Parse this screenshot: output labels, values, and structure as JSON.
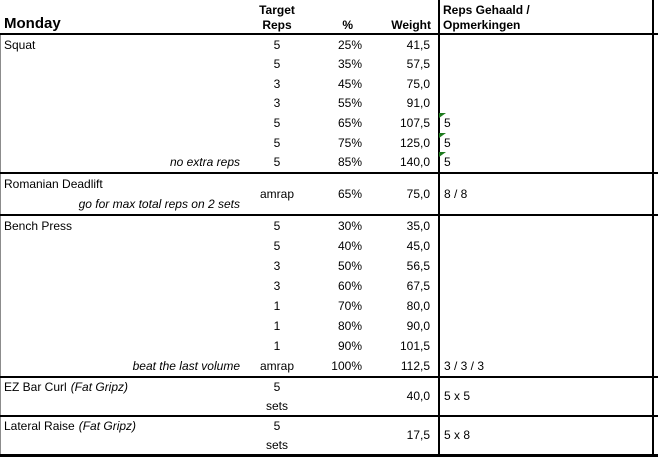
{
  "table": {
    "header": {
      "title": "Monday",
      "target_reps": [
        "Target",
        "Reps"
      ],
      "percent": "%",
      "weight": "Weight",
      "result": [
        "Reps Gehaald /",
        "Opmerkingen"
      ]
    },
    "sections": [
      {
        "exercise": "Squat",
        "note": "no extra reps",
        "rows": [
          {
            "reps": "5",
            "pct": "25%",
            "weight": "41,5",
            "result": ""
          },
          {
            "reps": "5",
            "pct": "35%",
            "weight": "57,5",
            "result": ""
          },
          {
            "reps": "3",
            "pct": "45%",
            "weight": "75,0",
            "result": ""
          },
          {
            "reps": "3",
            "pct": "55%",
            "weight": "91,0",
            "result": ""
          },
          {
            "reps": "5",
            "pct": "65%",
            "weight": "107,5",
            "result": "5",
            "has_note_indicator": true
          },
          {
            "reps": "5",
            "pct": "75%",
            "weight": "125,0",
            "result": "5",
            "has_note_indicator": true
          },
          {
            "reps": "5",
            "pct": "85%",
            "weight": "140,0",
            "result": "5",
            "has_note_indicator": true
          }
        ]
      },
      {
        "exercise": "Romanian Deadlift",
        "note": "go for max total reps on 2 sets",
        "reps": "amrap",
        "pct": "65%",
        "weight": "75,0",
        "result": "8 / 8"
      },
      {
        "exercise": "Bench Press",
        "note": "beat the last volume",
        "rows": [
          {
            "reps": "5",
            "pct": "30%",
            "weight": "35,0",
            "result": ""
          },
          {
            "reps": "5",
            "pct": "40%",
            "weight": "45,0",
            "result": ""
          },
          {
            "reps": "3",
            "pct": "50%",
            "weight": "56,5",
            "result": ""
          },
          {
            "reps": "3",
            "pct": "60%",
            "weight": "67,5",
            "result": ""
          },
          {
            "reps": "1",
            "pct": "70%",
            "weight": "80,0",
            "result": ""
          },
          {
            "reps": "1",
            "pct": "80%",
            "weight": "90,0",
            "result": ""
          },
          {
            "reps": "1",
            "pct": "90%",
            "weight": "101,5",
            "result": ""
          },
          {
            "reps": "amrap",
            "pct": "100%",
            "weight": "112,5",
            "result": "3 / 3 / 3"
          }
        ]
      },
      {
        "exercise": "EZ Bar Curl",
        "exercise_suffix": "(Fat Gripz)",
        "reps": "5",
        "reps_unit": "sets",
        "weight": "40,0",
        "result": "5 x 5"
      },
      {
        "exercise": "Lateral Raise",
        "exercise_suffix": "(Fat Gripz)",
        "reps": "5",
        "reps_unit": "sets",
        "weight": "17,5",
        "result": "5 x 8"
      }
    ]
  },
  "colors": {
    "indicator_green": "#1d7a1d",
    "border_gray": "#8c8c8c",
    "border_black": "#000000"
  }
}
